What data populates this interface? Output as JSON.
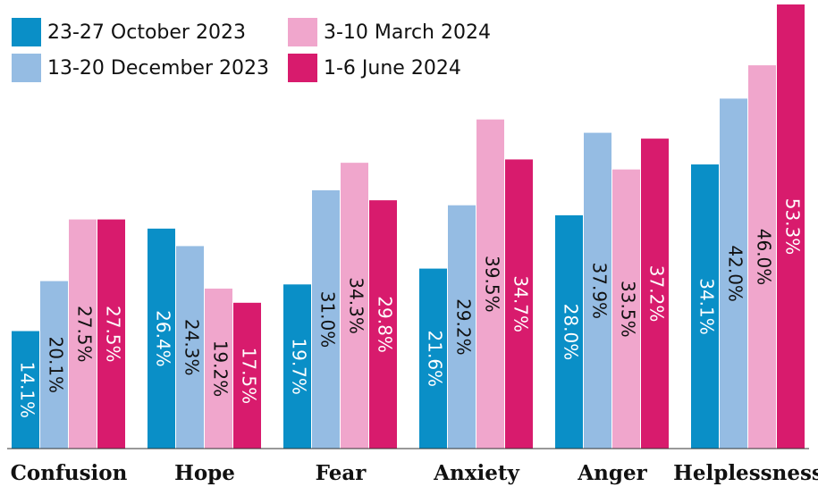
{
  "chart_data": {
    "type": "bar",
    "categories": [
      "Confusion",
      "Hope",
      "Fear",
      "Anxiety",
      "Anger",
      "Helplessness"
    ],
    "series": [
      {
        "name": "23-27 October 2023",
        "color": "#0a8fc7",
        "label_color": "#ffffff",
        "values": [
          14.1,
          26.4,
          19.7,
          21.6,
          28.0,
          34.1
        ],
        "value_labels": [
          "14.1%",
          "26.4%",
          "19.7%",
          "21.6%",
          "28.0%",
          "34.1%"
        ]
      },
      {
        "name": "13-20 December 2023",
        "color": "#95bce3",
        "label_color": "#111111",
        "values": [
          20.1,
          24.3,
          31.0,
          29.2,
          37.9,
          42.0
        ],
        "value_labels": [
          "20.1%",
          "24.3%",
          "31.0%",
          "29.2%",
          "37.9%",
          "42.0%"
        ]
      },
      {
        "name": "3-10 March 2024",
        "color": "#f0a6cc",
        "label_color": "#111111",
        "values": [
          27.5,
          19.2,
          34.3,
          39.5,
          33.5,
          46.0
        ],
        "value_labels": [
          "27.5%",
          "19.2%",
          "34.3%",
          "39.5%",
          "33.5%",
          "46.0%"
        ]
      },
      {
        "name": "1-6 June 2024",
        "color": "#d81b6d",
        "label_color": "#ffffff",
        "values": [
          27.5,
          17.5,
          29.8,
          34.7,
          37.2,
          53.3
        ],
        "value_labels": [
          "27.5%",
          "17.5%",
          "29.8%",
          "34.7%",
          "37.2%",
          "53.3%"
        ]
      }
    ]
  }
}
